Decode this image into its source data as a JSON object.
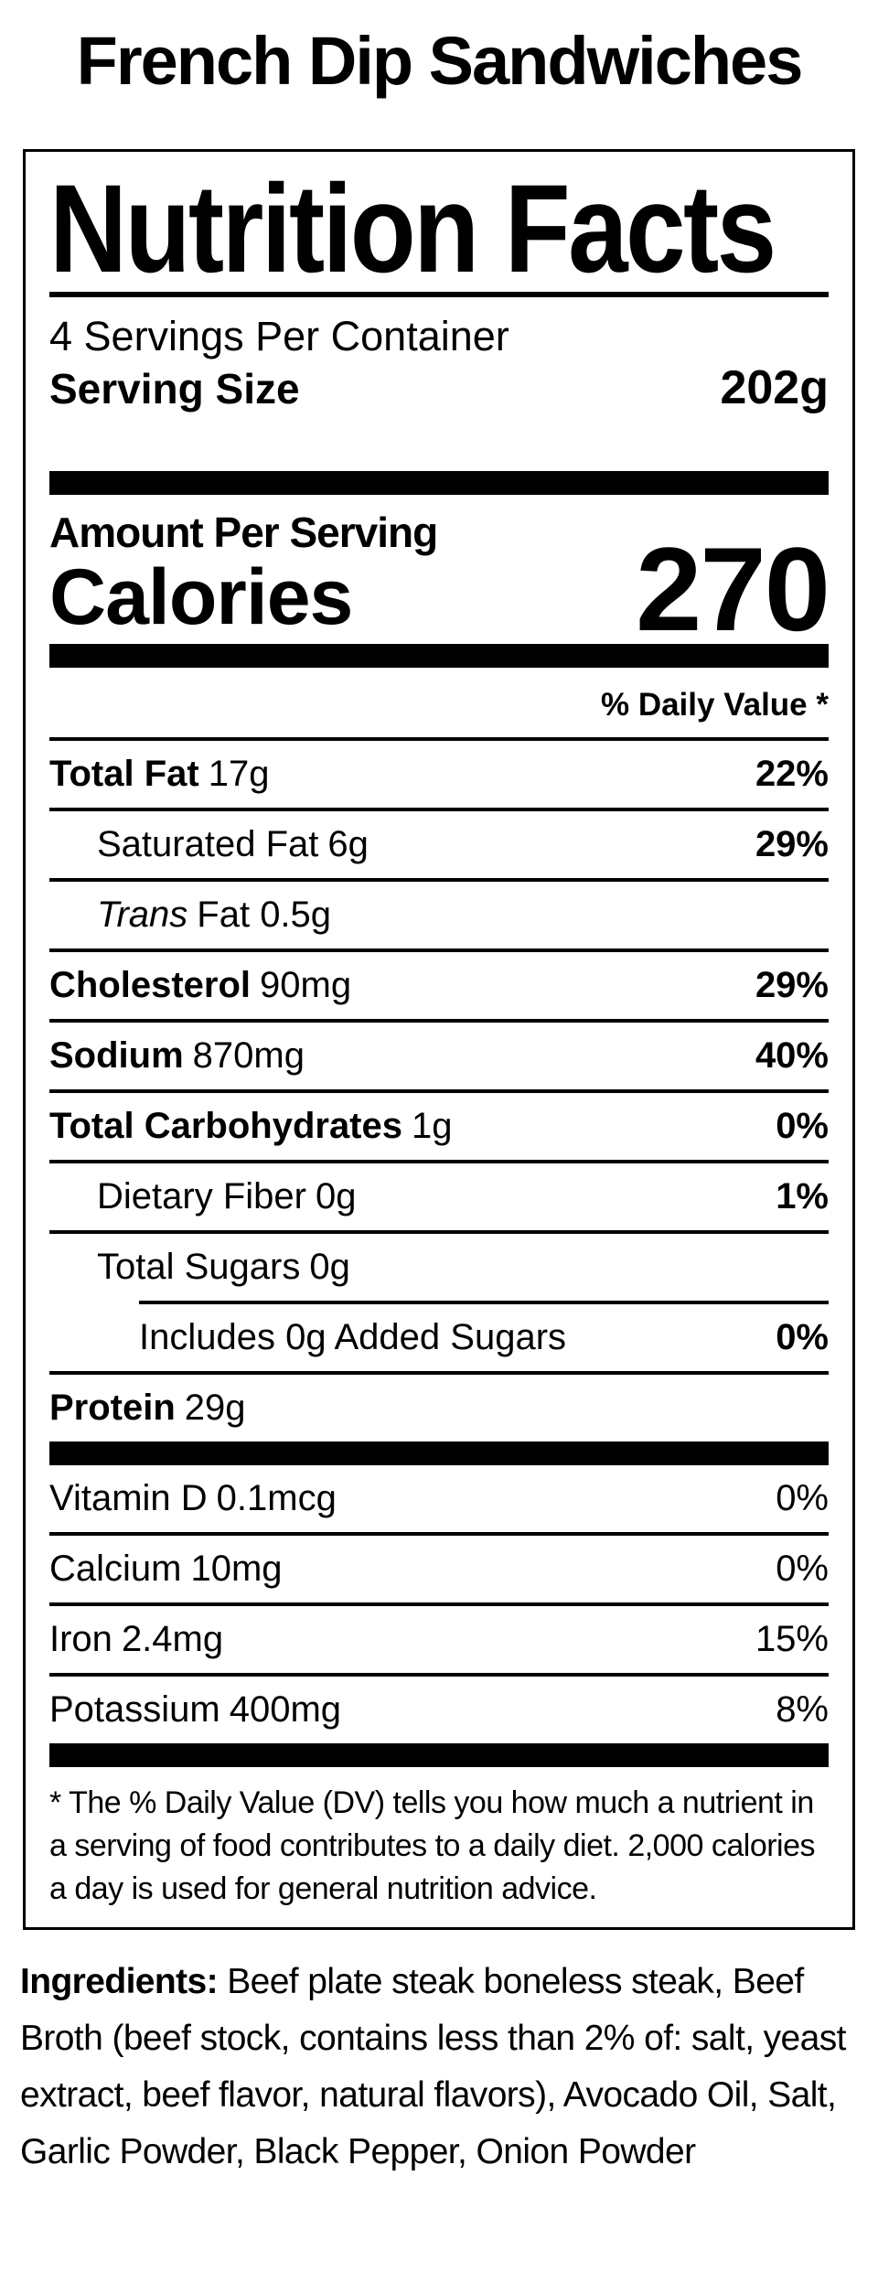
{
  "page_title": "French Dip Sandwiches",
  "nutrition_label": {
    "title": "Nutrition Facts",
    "servings_per_container": "4 Servings Per Container",
    "serving_size": {
      "label": "Serving Size",
      "value": "202g"
    },
    "amount_per_serving_label": "Amount Per Serving",
    "calories": {
      "label": "Calories",
      "value": "270"
    },
    "daily_value_header": "% Daily Value *",
    "nutrients": [
      {
        "name": "Total Fat",
        "amount": "17g",
        "daily_value": "22%"
      },
      {
        "name": "Saturated Fat",
        "amount": "6g",
        "daily_value": "29%"
      },
      {
        "name": "Trans",
        "amount": "Fat 0.5g",
        "daily_value": ""
      },
      {
        "name": "Cholesterol",
        "amount": "90mg",
        "daily_value": "29%"
      },
      {
        "name": "Sodium",
        "amount": "870mg",
        "daily_value": "40%"
      },
      {
        "name": "Total Carbohydrates",
        "amount": "1g",
        "daily_value": "0%"
      },
      {
        "name": "Dietary Fiber",
        "amount": "0g",
        "daily_value": "1%"
      },
      {
        "name": "Total Sugars",
        "amount": "0g",
        "daily_value": ""
      },
      {
        "name": "Includes 0g Added Sugars",
        "amount": "",
        "daily_value": "0%"
      },
      {
        "name": "Protein",
        "amount": "29g",
        "daily_value": ""
      }
    ],
    "micronutrients": [
      {
        "name": "Vitamin D",
        "amount": "0.1mcg",
        "daily_value": "0%"
      },
      {
        "name": "Calcium",
        "amount": "10mg",
        "daily_value": "0%"
      },
      {
        "name": "Iron",
        "amount": "2.4mg",
        "daily_value": "15%"
      },
      {
        "name": "Potassium",
        "amount": "400mg",
        "daily_value": "8%"
      }
    ],
    "footnote": "* The % Daily Value (DV) tells you how much a nutrient in a serving of food contributes to a daily diet. 2,000 calories a day is used for general nutrition advice."
  },
  "ingredients": {
    "label": "Ingredients:",
    "text": " Beef plate steak boneless steak, Beef Broth (beef stock, contains less than 2% of: salt, yeast extract, beef flavor, natural flavors), Avocado Oil, Salt, Garlic Powder, Black Pepper, Onion Powder"
  },
  "colors": {
    "text": "#000000",
    "background": "#ffffff"
  }
}
